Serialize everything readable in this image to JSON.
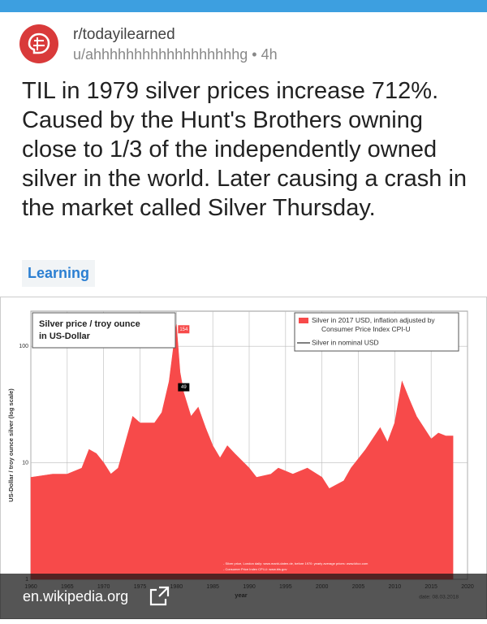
{
  "header": {
    "subreddit": "r/todayilearned",
    "user": "u/ahhhhhhhhhhhhhhhhhhg",
    "separator": "•",
    "age": "4h"
  },
  "post": {
    "title": "TIL in 1979 silver prices increase 712%. Caused by the Hunt's Brothers owning close to 1/3 of the independently owned silver in the world. Later causing a crash in the market called Silver Thursday.",
    "flair": "Learning"
  },
  "link": {
    "domain": "en.wikipedia.org"
  },
  "chart_data": {
    "type": "area",
    "title": "Silver price / troy ounce in US-Dollar",
    "x_label": "year",
    "y_label": "US-Dollar / troy ounce silver (log scale)",
    "x": [
      1960,
      1963,
      1965,
      1967,
      1968,
      1969,
      1970,
      1971,
      1972,
      1973,
      1974,
      1975,
      1977,
      1978,
      1979,
      1980,
      1980.5,
      1981,
      1982,
      1983,
      1984,
      1985,
      1986,
      1987,
      1988,
      1990,
      1991,
      1993,
      1994,
      1996,
      1998,
      2000,
      2001,
      2003,
      2004,
      2006,
      2008,
      2009,
      2010,
      2011,
      2012,
      2013,
      2014,
      2015,
      2016,
      2017,
      2018
    ],
    "series": [
      {
        "name": "Silver in 2017 USD, inflation adjusted by Consumer Price Index CPI-U",
        "color": "#f74a4a",
        "values": [
          7.5,
          8,
          8,
          9,
          13,
          12,
          10,
          8,
          9,
          15,
          25,
          22,
          22,
          27,
          50,
          154,
          60,
          40,
          25,
          30,
          20,
          14,
          11,
          14,
          12,
          9,
          7.5,
          8,
          9,
          8,
          9,
          7.5,
          6,
          7,
          9,
          13,
          20,
          15,
          22,
          50,
          35,
          25,
          20,
          16,
          18,
          17,
          17
        ]
      },
      {
        "name": "Silver in nominal USD",
        "color": "#000000",
        "values": [
          0.91,
          1.28,
          1.29,
          1.29,
          2.1,
          1.9,
          1.8,
          1.4,
          1.7,
          2.5,
          4.7,
          4.4,
          4.6,
          5.4,
          11,
          49,
          16,
          10,
          8,
          11,
          8,
          6.1,
          5.5,
          7,
          6.5,
          4.8,
          4,
          4.3,
          5.3,
          5.2,
          5.5,
          5,
          4.4,
          4.9,
          6.7,
          11.5,
          15,
          14,
          20,
          35,
          31,
          24,
          19,
          15.7,
          17,
          17,
          16.5
        ]
      }
    ],
    "xlim": [
      1960,
      2020
    ],
    "xticks": [
      1960,
      1965,
      1970,
      1975,
      1980,
      1985,
      1990,
      1995,
      2000,
      2005,
      2010,
      2015,
      2020
    ],
    "ylim": [
      1,
      200
    ],
    "yticks": [
      1,
      10,
      100
    ],
    "log_y": true,
    "grid": true,
    "annotations": [
      {
        "x": 1980,
        "value": 154,
        "color": "#f74a4a"
      },
      {
        "x": 1980,
        "value": 49,
        "color": "#000000"
      }
    ],
    "source_notes": [
      "- Silver price, London daily: www.markt-daten.de, before 1970: yearly average prices: www.kitco.com",
      "- Consumer Price Index CPI-U: www.bls.gov"
    ],
    "date": "date: 08.03.2018"
  }
}
